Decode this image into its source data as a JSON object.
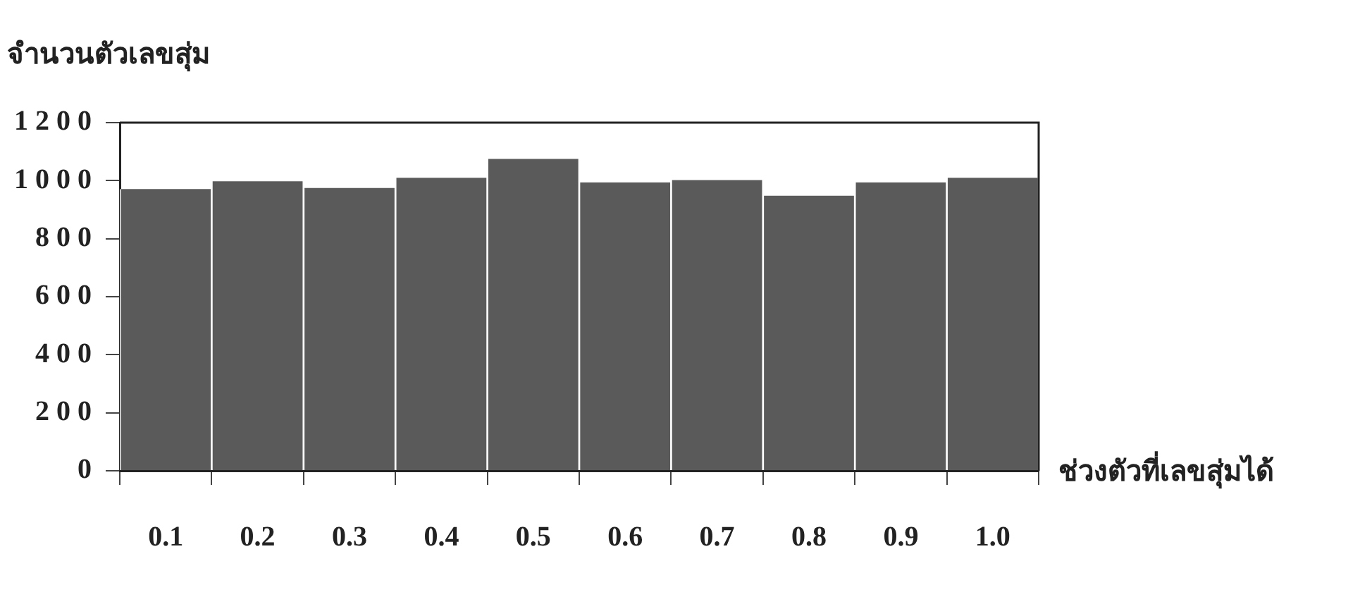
{
  "chart_data": {
    "type": "bar",
    "ylabel": "จำนวนตัวเลขสุ่ม",
    "xlabel": "ช่วงตัวที่เลขสุ่มได้",
    "categories": [
      "0.1",
      "0.2",
      "0.3",
      "0.4",
      "0.5",
      "0.6",
      "0.7",
      "0.8",
      "0.9",
      "1.0"
    ],
    "values": [
      971,
      998,
      975,
      1010,
      1075,
      994,
      1002,
      948,
      994,
      1010
    ],
    "color": "#5a5a5a",
    "ylim": [
      0,
      1200
    ],
    "yticks": [
      0,
      200,
      400,
      600,
      800,
      1000,
      1200
    ],
    "grid": false,
    "legend": false
  }
}
